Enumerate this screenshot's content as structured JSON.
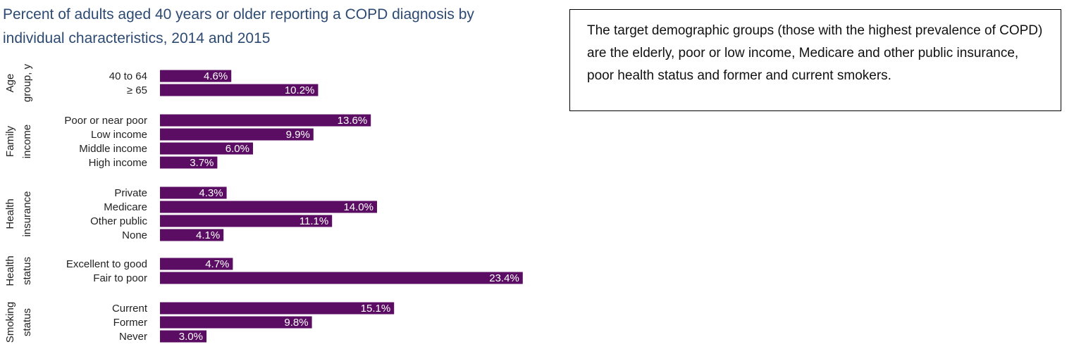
{
  "title_lines": [
    "Percent of adults aged 40 years or older reporting a COPD diagnosis by",
    "individual characteristics, 2014 and 2015"
  ],
  "note": {
    "text": "The target demographic groups (those with the highest prevalence of COPD) are the elderly, poor or low income, Medicare and other public insurance, poor health status and former and current smokers."
  },
  "colors": {
    "bar": "#5a0d63",
    "title": "#2d4a73"
  },
  "chart_data": {
    "type": "bar",
    "orientation": "horizontal",
    "title": "Percent of adults aged 40 years or older reporting a COPD diagnosis by individual characteristics, 2014 and 2015",
    "unit": "%",
    "xlim": [
      0,
      23.4
    ],
    "groups": [
      {
        "name": "Age group, y",
        "name_lines": [
          "Age",
          "group, y"
        ],
        "categories": [
          "40 to 64",
          "≥ 65"
        ],
        "values": [
          4.6,
          10.2
        ],
        "labels": [
          "4.6%",
          "10.2%"
        ]
      },
      {
        "name": "Family income",
        "name_lines": [
          "Family",
          "income"
        ],
        "categories": [
          "Poor or near poor",
          "Low income",
          "Middle income",
          "High income"
        ],
        "values": [
          13.6,
          9.9,
          6.0,
          3.7
        ],
        "labels": [
          "13.6%",
          "9.9%",
          "6.0%",
          "3.7%"
        ]
      },
      {
        "name": "Health insurance",
        "name_lines": [
          "Health",
          "insurance"
        ],
        "categories": [
          "Private",
          "Medicare",
          "Other public",
          "None"
        ],
        "values": [
          4.3,
          14.0,
          11.1,
          4.1
        ],
        "labels": [
          "4.3%",
          "14.0%",
          "11.1%",
          "4.1%"
        ]
      },
      {
        "name": "Health status",
        "name_lines": [
          "Health",
          "status"
        ],
        "categories": [
          "Excellent to good",
          "Fair to poor"
        ],
        "values": [
          4.7,
          23.4
        ],
        "labels": [
          "4.7%",
          "23.4%"
        ]
      },
      {
        "name": "Smoking status",
        "name_lines": [
          "Smoking",
          "status"
        ],
        "categories": [
          "Current",
          "Former",
          "Never"
        ],
        "values": [
          15.1,
          9.8,
          3.0
        ],
        "labels": [
          "15.1%",
          "9.8%",
          "3.0%"
        ]
      }
    ]
  }
}
